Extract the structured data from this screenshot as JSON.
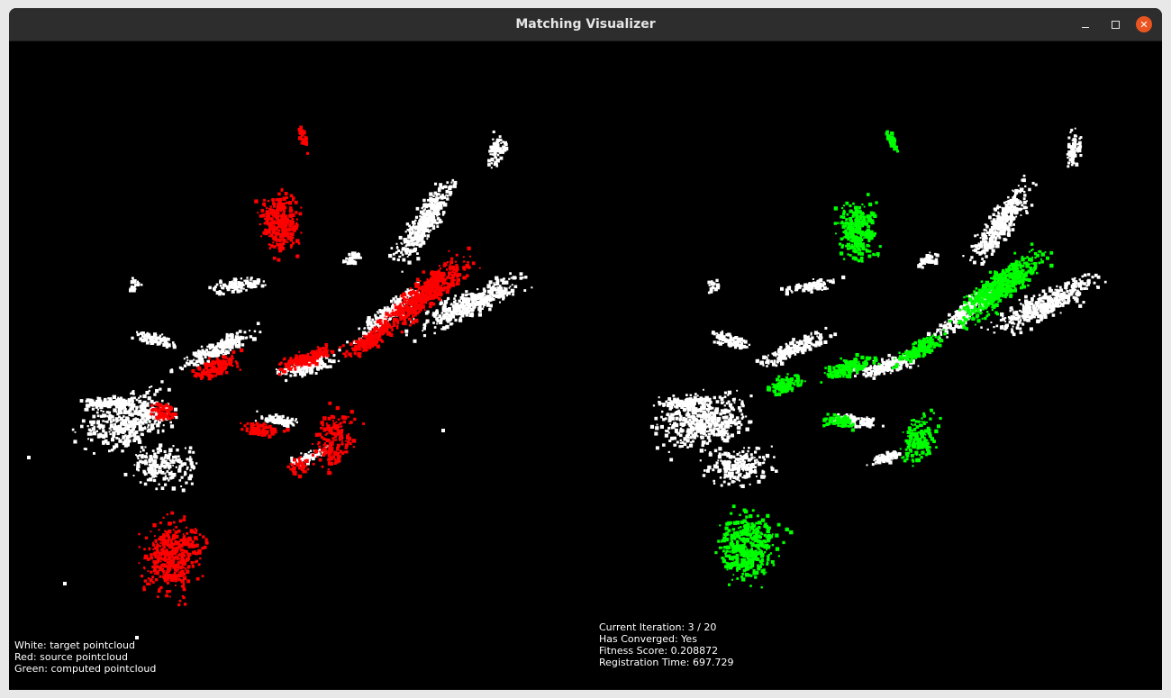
{
  "window": {
    "title": "Matching Visualizer",
    "controls": {
      "minimize": "minimize-icon",
      "maximize": "maximize-icon",
      "close": "close-icon"
    },
    "close_color": "#e95420"
  },
  "colors": {
    "target": "#ffffff",
    "source": "#ff0000",
    "computed": "#00ff00",
    "background": "#000000"
  },
  "legend": {
    "white": "White: target pointcloud",
    "red": "Red: source pointcloud",
    "green": "Green: computed pointcloud"
  },
  "stats": {
    "iteration": "Current Iteration: 3 / 20",
    "converged": "Has Converged: Yes",
    "fitness": "Fitness Score: 0.208872",
    "time": "Registration Time: 697.729"
  }
}
